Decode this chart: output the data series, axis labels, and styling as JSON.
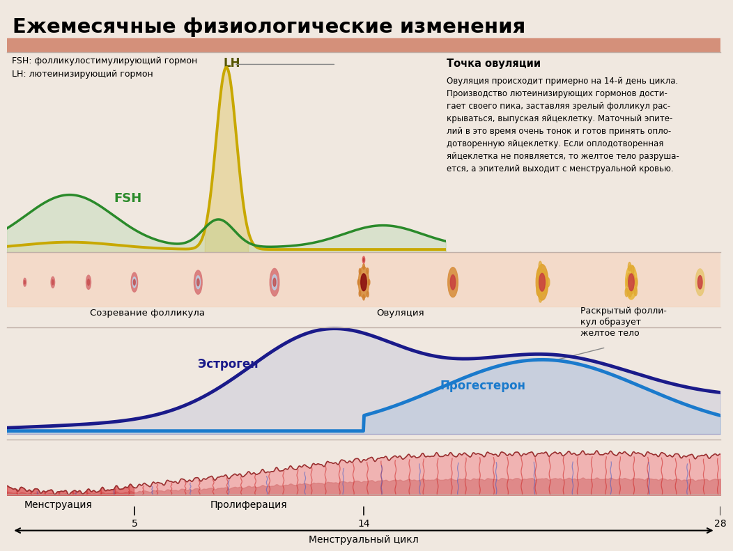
{
  "title": "Ежемесячные физиологические изменения",
  "fsh_label": "FSH",
  "lh_label": "LH",
  "estrogen_label": "Эстроген",
  "progesterone_label": "Прогестерон",
  "follicle_label": "Созревание фолликула",
  "ovulation_label": "Овуляция",
  "corpus_label": "Раскрытый фолли-\nкул образует\nжелтое тело",
  "ovulation_point_title": "Точка овуляции",
  "ovulation_point_text": "Овуляция происходит примерно на 14-й день цикла.\nПроизводство лютеинизирующих гормонов дости-\nгает своего пика, заставляя зрелый фолликул рас-\nкрываться, выпуская яйцеклетку. Маточный эпите-\nлий в это время очень тонок и готов принять опло-\nдотворенную яйцеклетку. Если оплодотворенная\nяйцеклетка не появляется, то желтое тело разруша-\nется, а эпителий выходит с менструальной кровью.",
  "legend_fsh": "FSH: фолликулостимулирующий гормон",
  "legend_lh": "LH: лютеинизирующий гормон",
  "axis_label": "Менструальный цикл",
  "menstruation_label": "Менструация",
  "proliferation_label": "Пролиферация",
  "tick5": "5",
  "tick14": "14",
  "tick28": "28",
  "fsh_color": "#2a8a2a",
  "lh_color": "#c8a800",
  "estrogen_color": "#1a1a8a",
  "progesterone_color": "#1a7acc",
  "title_bg_top": "#e8b0a0",
  "title_bg_bot": "#d4907a",
  "bg_hormone": "#f8f0ea",
  "bg_follicle": "#f8e8d8",
  "bg_ep": "#f0f4fa",
  "bg_uterus": "#fce8e8",
  "bg_axis": "#e8f0f8"
}
